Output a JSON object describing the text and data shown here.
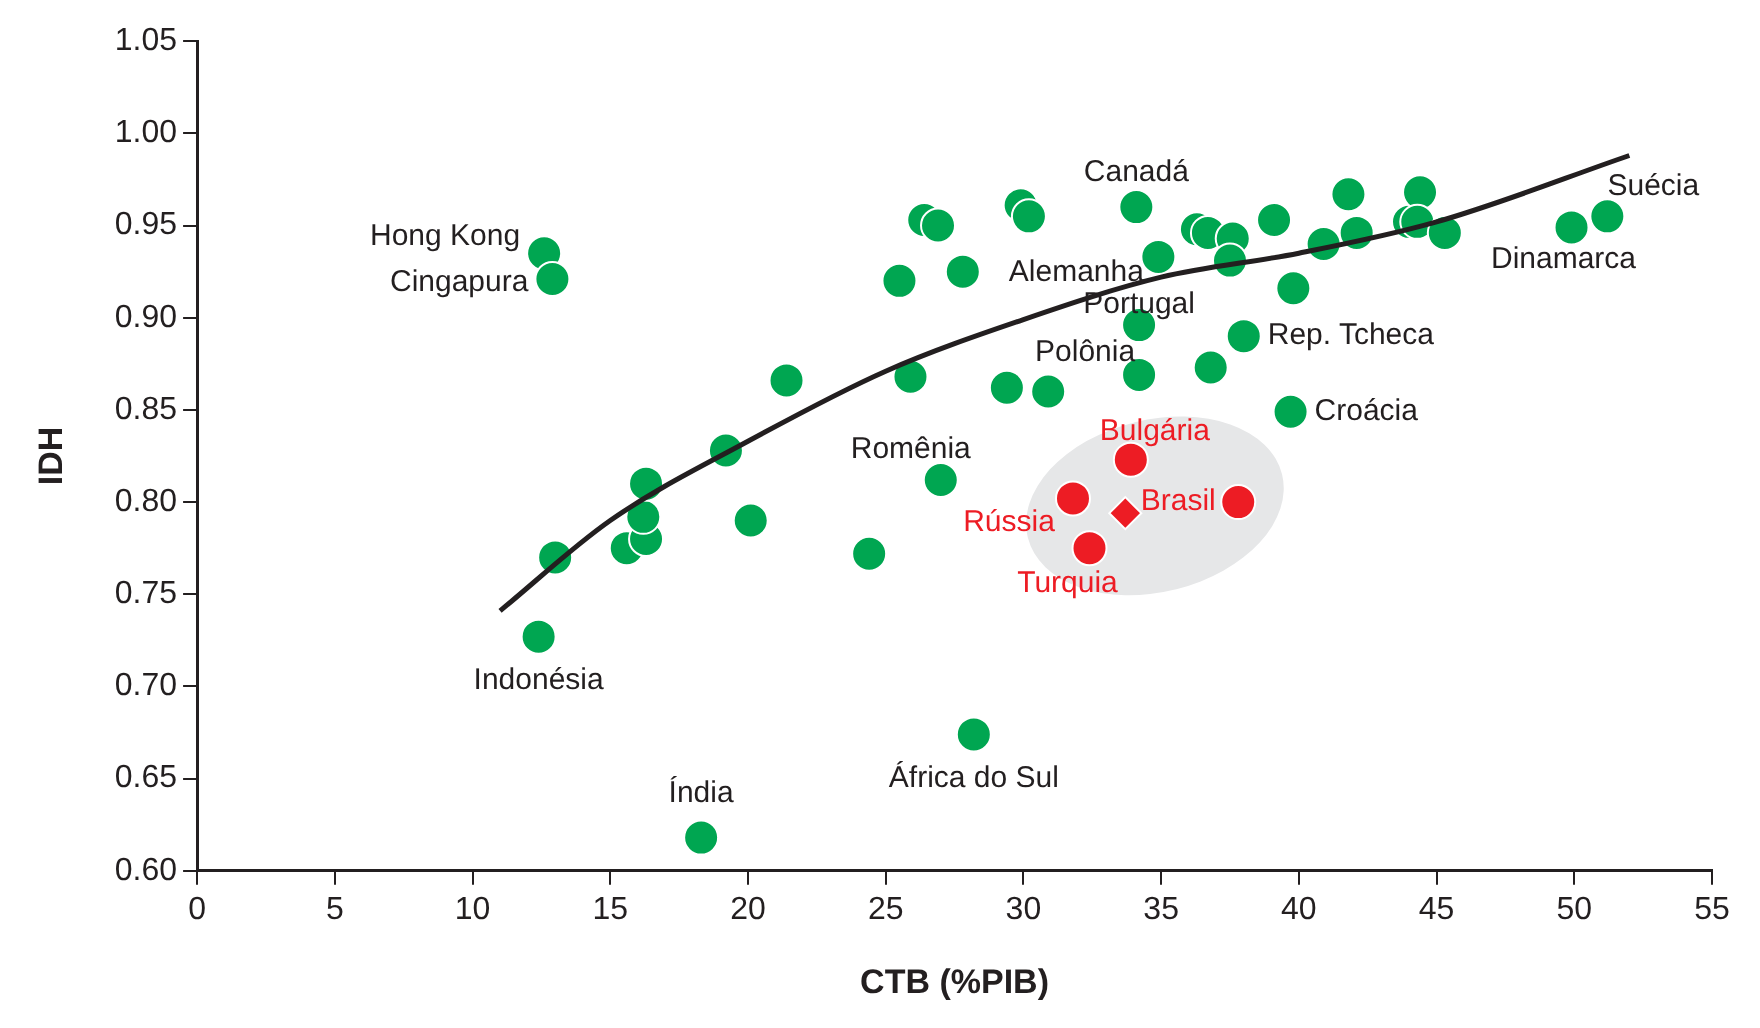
{
  "chart_data": {
    "type": "scatter",
    "xlabel": "CTB (%PIB)",
    "ylabel": "IDH",
    "xlim": [
      0,
      55
    ],
    "xticks": [
      0,
      5,
      10,
      15,
      20,
      25,
      30,
      35,
      40,
      45,
      50,
      55
    ],
    "ylim": [
      0.6,
      1.05
    ],
    "yticks": [
      {
        "value": 0.6,
        "label": "0.60"
      },
      {
        "value": 0.65,
        "label": "0.65"
      },
      {
        "value": 0.7,
        "label": "0.70"
      },
      {
        "value": 0.75,
        "label": "0.75"
      },
      {
        "value": 0.8,
        "label": "0.80"
      },
      {
        "value": 0.85,
        "label": "0.85"
      },
      {
        "value": 0.9,
        "label": "0.90"
      },
      {
        "value": 0.95,
        "label": "0.95"
      },
      {
        "value": 1.0,
        "label": "1.00"
      },
      {
        "value": 1.05,
        "label": "1.05"
      }
    ],
    "grid": false,
    "legend": false,
    "marker": "circle",
    "series": [
      {
        "type": "scatter",
        "color": "#00a651",
        "x": [
          12.6,
          12.9,
          12.4,
          13.0,
          15.6,
          16.3,
          16.2,
          16.3,
          19.2,
          20.1,
          21.4,
          18.3,
          24.4,
          27.0,
          25.5,
          25.9,
          26.4,
          26.9,
          27.8,
          29.9,
          30.2,
          29.4,
          30.9,
          28.2,
          34.1,
          34.9,
          34.2,
          34.2,
          36.3,
          36.7,
          37.6,
          37.5,
          36.8,
          38.0,
          39.8,
          39.7,
          39.1,
          41.8,
          40.9,
          42.1,
          44.0,
          44.4,
          44.3,
          45.3,
          49.9,
          51.2
        ],
        "values": [
          0.935,
          0.921,
          0.727,
          0.77,
          0.775,
          0.78,
          0.792,
          0.81,
          0.828,
          0.79,
          0.866,
          0.618,
          0.772,
          0.812,
          0.92,
          0.868,
          0.953,
          0.95,
          0.925,
          0.961,
          0.955,
          0.862,
          0.86,
          0.674,
          0.96,
          0.933,
          0.896,
          0.869,
          0.948,
          0.946,
          0.943,
          0.931,
          0.873,
          0.89,
          0.916,
          0.849,
          0.953,
          0.967,
          0.94,
          0.946,
          0.952,
          0.968,
          0.952,
          0.946,
          0.949,
          0.955
        ]
      },
      {
        "type": "scatter",
        "color": "#ed1c24",
        "x": [
          33.9,
          31.8,
          37.8,
          32.4
        ],
        "values": [
          0.823,
          0.802,
          0.8,
          0.775
        ]
      },
      {
        "type": "scatter",
        "color": "#ed1c24",
        "marker": "diamond",
        "x": [
          33.7
        ],
        "values": [
          0.794
        ]
      },
      {
        "type": "line",
        "color": "#231f20",
        "marker": "none",
        "x": [
          11,
          15,
          20,
          25,
          30,
          35,
          40,
          45,
          52
        ],
        "values": [
          0.741,
          0.79,
          0.833,
          0.871,
          0.899,
          0.922,
          0.935,
          0.952,
          0.988
        ]
      }
    ],
    "annotations": [
      {
        "text": "Hong Kong",
        "x": 12.6,
        "y": 0.935
      },
      {
        "text": "Cingapura",
        "x": 12.9,
        "y": 0.921
      },
      {
        "text": "Indonésia",
        "x": 12.4,
        "y": 0.727
      },
      {
        "text": "Índia",
        "x": 18.3,
        "y": 0.618
      },
      {
        "text": "África do Sul",
        "x": 28.2,
        "y": 0.674
      },
      {
        "text": "Romênia",
        "x": 27.0,
        "y": 0.812
      },
      {
        "text": "Canadá",
        "x": 34.1,
        "y": 0.96
      },
      {
        "text": "Alemanha",
        "x": 34.9,
        "y": 0.933
      },
      {
        "text": "Portugal",
        "x": 34.2,
        "y": 0.896
      },
      {
        "text": "Polônia",
        "x": 34.2,
        "y": 0.869
      },
      {
        "text": "Rep. Tcheca",
        "x": 38.0,
        "y": 0.89
      },
      {
        "text": "Croácia",
        "x": 39.7,
        "y": 0.849
      },
      {
        "text": "Dinamarca",
        "x": 49.9,
        "y": 0.949
      },
      {
        "text": "Suécia",
        "x": 51.2,
        "y": 0.955
      },
      {
        "text": "Bulgária",
        "x": 33.9,
        "y": 0.823
      },
      {
        "text": "Rússia",
        "x": 31.8,
        "y": 0.802
      },
      {
        "text": "Brasil",
        "x": 37.8,
        "y": 0.8
      },
      {
        "text": "Turquia",
        "x": 32.4,
        "y": 0.775
      }
    ]
  }
}
